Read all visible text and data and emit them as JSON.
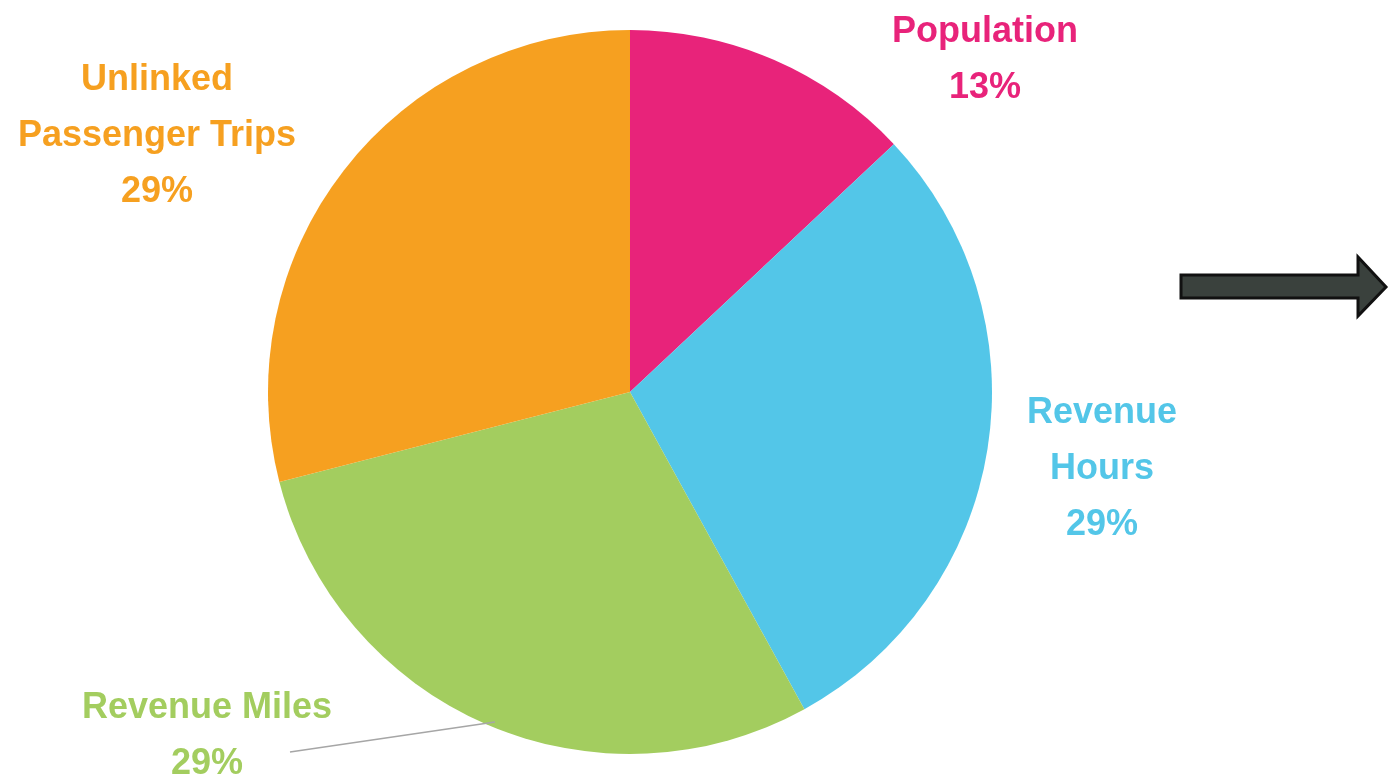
{
  "chart_data": {
    "type": "pie",
    "categories": [
      "Population",
      "Revenue Hours",
      "Revenue Miles",
      "Unlinked Passenger Trips"
    ],
    "values": [
      13,
      29,
      29,
      29
    ],
    "colors": [
      "#e8237a",
      "#53c6e8",
      "#a3cd5f",
      "#f6a020"
    ],
    "value_labels": [
      "13%",
      "29%",
      "29%",
      "29%"
    ]
  }
}
